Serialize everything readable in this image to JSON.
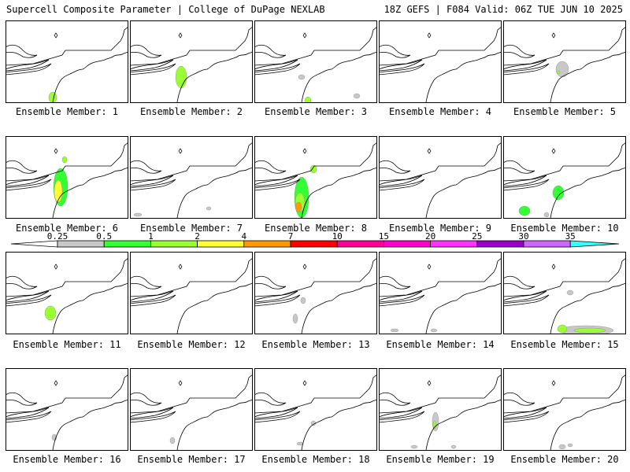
{
  "header": {
    "left": "Supercell Composite Parameter | College of DuPage NEXLAB",
    "right": "18Z GEFS | F084 Valid: 06Z TUE JUN 10 2025"
  },
  "panels": [
    {
      "label": "Ensemble Member: 1",
      "member": 1,
      "blobs": [
        {
          "cx": 60,
          "cy": 98,
          "rx": 5,
          "ry": 7,
          "lvl": 2
        }
      ]
    },
    {
      "label": "Ensemble Member: 2",
      "member": 2,
      "blobs": [
        {
          "cx": 65,
          "cy": 72,
          "rx": 7,
          "ry": 14,
          "lvl": 2
        }
      ]
    },
    {
      "label": "Ensemble Member: 3",
      "member": 3,
      "blobs": [
        {
          "cx": 68,
          "cy": 102,
          "rx": 4,
          "ry": 5,
          "lvl": 2
        },
        {
          "cx": 130,
          "cy": 96,
          "rx": 4,
          "ry": 3,
          "lvl": 0
        },
        {
          "cx": 60,
          "cy": 72,
          "rx": 4,
          "ry": 3,
          "lvl": 0
        }
      ]
    },
    {
      "label": "Ensemble Member: 4",
      "member": 4,
      "blobs": []
    },
    {
      "label": "Ensemble Member: 5",
      "member": 5,
      "blobs": [
        {
          "cx": 75,
          "cy": 62,
          "rx": 8,
          "ry": 10,
          "lvl": 0
        },
        {
          "cx": 70,
          "cy": 66,
          "rx": 2,
          "ry": 2,
          "lvl": 2
        }
      ]
    },
    {
      "label": "Ensemble Member: 6",
      "member": 6,
      "blobs": [
        {
          "cx": 70,
          "cy": 65,
          "rx": 9,
          "ry": 24,
          "lvl": 1
        },
        {
          "cx": 67,
          "cy": 70,
          "rx": 5,
          "ry": 14,
          "lvl": 3
        },
        {
          "cx": 75,
          "cy": 30,
          "rx": 3,
          "ry": 4,
          "lvl": 2
        }
      ]
    },
    {
      "label": "Ensemble Member: 7",
      "member": 7,
      "blobs": [
        {
          "cx": 10,
          "cy": 100,
          "rx": 5,
          "ry": 2,
          "lvl": 0
        },
        {
          "cx": 100,
          "cy": 92,
          "rx": 3,
          "ry": 2,
          "lvl": 0
        }
      ]
    },
    {
      "label": "Ensemble Member: 8",
      "member": 8,
      "blobs": [
        {
          "cx": 60,
          "cy": 78,
          "rx": 9,
          "ry": 26,
          "lvl": 1
        },
        {
          "cx": 58,
          "cy": 84,
          "rx": 6,
          "ry": 12,
          "lvl": 2
        },
        {
          "cx": 56,
          "cy": 90,
          "rx": 4,
          "ry": 6,
          "lvl": 4
        },
        {
          "cx": 75,
          "cy": 42,
          "rx": 4,
          "ry": 5,
          "lvl": 2
        }
      ]
    },
    {
      "label": "Ensemble Member: 9",
      "member": 9,
      "blobs": []
    },
    {
      "label": "Ensemble Member: 10",
      "member": 10,
      "blobs": [
        {
          "cx": 70,
          "cy": 72,
          "rx": 7,
          "ry": 9,
          "lvl": 1
        },
        {
          "cx": 27,
          "cy": 95,
          "rx": 7,
          "ry": 6,
          "lvl": 1
        },
        {
          "cx": 55,
          "cy": 100,
          "rx": 3,
          "ry": 3,
          "lvl": 0
        }
      ]
    },
    {
      "label": "Ensemble Member: 11",
      "member": 11,
      "blobs": [
        {
          "cx": 57,
          "cy": 78,
          "rx": 7,
          "ry": 9,
          "lvl": 2
        }
      ]
    },
    {
      "label": "Ensemble Member: 12",
      "member": 12,
      "blobs": []
    },
    {
      "label": "Ensemble Member: 13",
      "member": 13,
      "blobs": [
        {
          "cx": 62,
          "cy": 62,
          "rx": 3,
          "ry": 4,
          "lvl": 0
        },
        {
          "cx": 52,
          "cy": 85,
          "rx": 3,
          "ry": 6,
          "lvl": 0
        }
      ]
    },
    {
      "label": "Ensemble Member: 14",
      "member": 14,
      "blobs": [
        {
          "cx": 20,
          "cy": 100,
          "rx": 5,
          "ry": 2,
          "lvl": 0
        },
        {
          "cx": 70,
          "cy": 100,
          "rx": 4,
          "ry": 2,
          "lvl": 0
        }
      ]
    },
    {
      "label": "Ensemble Member: 15",
      "member": 15,
      "blobs": [
        {
          "cx": 105,
          "cy": 100,
          "rx": 35,
          "ry": 6,
          "lvl": 0
        },
        {
          "cx": 110,
          "cy": 100,
          "rx": 20,
          "ry": 3,
          "lvl": 2
        },
        {
          "cx": 75,
          "cy": 98,
          "rx": 6,
          "ry": 5,
          "lvl": 2
        },
        {
          "cx": 85,
          "cy": 52,
          "rx": 4,
          "ry": 3,
          "lvl": 0
        }
      ]
    },
    {
      "label": "Ensemble Member: 16",
      "member": 16,
      "blobs": [
        {
          "cx": 62,
          "cy": 88,
          "rx": 3,
          "ry": 4,
          "lvl": 0
        }
      ]
    },
    {
      "label": "Ensemble Member: 17",
      "member": 17,
      "blobs": [
        {
          "cx": 54,
          "cy": 92,
          "rx": 3,
          "ry": 4,
          "lvl": 0
        }
      ]
    },
    {
      "label": "Ensemble Member: 18",
      "member": 18,
      "blobs": [
        {
          "cx": 75,
          "cy": 70,
          "rx": 3,
          "ry": 3,
          "lvl": 0
        },
        {
          "cx": 58,
          "cy": 96,
          "rx": 4,
          "ry": 2,
          "lvl": 0
        }
      ]
    },
    {
      "label": "Ensemble Member: 19",
      "member": 19,
      "blobs": [
        {
          "cx": 72,
          "cy": 68,
          "rx": 4,
          "ry": 12,
          "lvl": 0
        },
        {
          "cx": 71,
          "cy": 72,
          "rx": 2,
          "ry": 5,
          "lvl": 2
        },
        {
          "cx": 45,
          "cy": 100,
          "rx": 4,
          "ry": 2,
          "lvl": 0
        },
        {
          "cx": 95,
          "cy": 100,
          "rx": 3,
          "ry": 2,
          "lvl": 0
        }
      ]
    },
    {
      "label": "Ensemble Member: 20",
      "member": 20,
      "blobs": [
        {
          "cx": 75,
          "cy": 100,
          "rx": 4,
          "ry": 3,
          "lvl": 0
        },
        {
          "cx": 85,
          "cy": 98,
          "rx": 3,
          "ry": 2,
          "lvl": 0
        }
      ]
    }
  ],
  "legend": {
    "ticks": [
      "0.25",
      "0.5",
      "1",
      "2",
      "4",
      "7",
      "10",
      "15",
      "20",
      "25",
      "30",
      "35"
    ],
    "colors": [
      "#c8c8c8",
      "#33ff33",
      "#99ff33",
      "#ffff33",
      "#ff9900",
      "#ff0000",
      "#ff0099",
      "#ff00cc",
      "#ff33ff",
      "#9900cc",
      "#cc66ff",
      "#33ffff"
    ]
  }
}
